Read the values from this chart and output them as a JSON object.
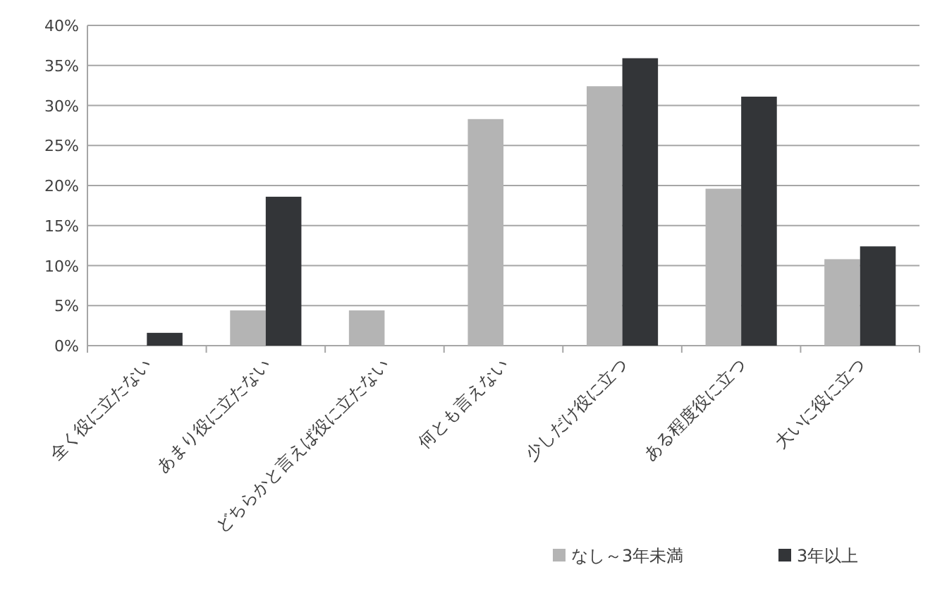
{
  "chart_data": {
    "type": "bar",
    "categories": [
      "全く役に立たない",
      "あまり役に立たない",
      "どちらかと言えば役に立たない",
      "何とも言えない",
      "少しだけ役に立つ",
      "ある程度役に立つ",
      "大いに役に立つ"
    ],
    "series": [
      {
        "name": "なし～3年未満",
        "color": "#b4b4b4",
        "values": [
          null,
          4.4,
          4.4,
          28.3,
          32.4,
          19.6,
          10.8
        ]
      },
      {
        "name": "3年以上",
        "color": "#333538",
        "values": [
          1.6,
          18.6,
          null,
          null,
          35.9,
          31.1,
          12.4
        ]
      }
    ],
    "ylim": [
      0,
      40
    ],
    "yticks": [
      {
        "value": 0,
        "label": "0%"
      },
      {
        "value": 5,
        "label": "5%"
      },
      {
        "value": 10,
        "label": "10%"
      },
      {
        "value": 15,
        "label": "15%"
      },
      {
        "value": 20,
        "label": "20%"
      },
      {
        "value": 25,
        "label": "25%"
      },
      {
        "value": 30,
        "label": "30%"
      },
      {
        "value": 35,
        "label": "35%"
      },
      {
        "value": 40,
        "label": "40%"
      }
    ],
    "grid": "y",
    "legend": "bottom right"
  }
}
